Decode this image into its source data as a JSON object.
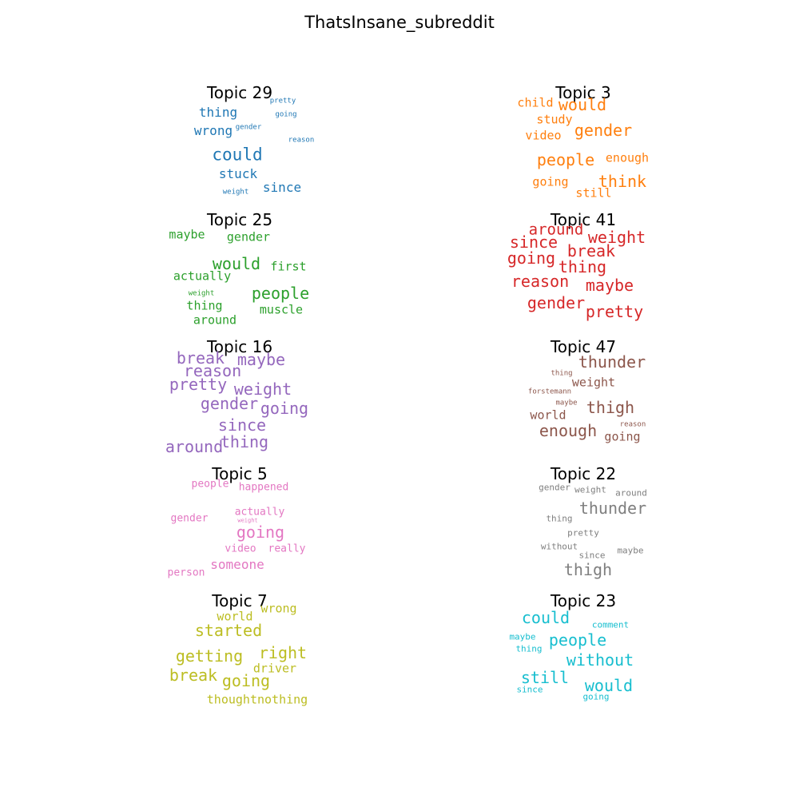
{
  "title": "ThatsInsane_subreddit",
  "topics": [
    {
      "title": "Topic 29",
      "color": "#1f77b4",
      "words": [
        "could",
        "thing",
        "wrong",
        "stuck",
        "since",
        "pretty",
        "going",
        "gender",
        "reason",
        "weight"
      ]
    },
    {
      "title": "Topic 3",
      "color": "#ff7f0e",
      "words": [
        "child",
        "would",
        "study",
        "gender",
        "video",
        "people",
        "enough",
        "think",
        "going",
        "still"
      ]
    },
    {
      "title": "Topic 25",
      "color": "#2ca02c",
      "words": [
        "maybe",
        "gender",
        "would",
        "first",
        "actually",
        "people",
        "weight",
        "thing",
        "muscle",
        "around"
      ]
    },
    {
      "title": "Topic 41",
      "color": "#d62728",
      "words": [
        "around",
        "weight",
        "since",
        "break",
        "going",
        "thing",
        "reason",
        "maybe",
        "gender",
        "pretty"
      ]
    },
    {
      "title": "Topic 16",
      "color": "#9467bd",
      "words": [
        "break",
        "maybe",
        "reason",
        "pretty",
        "weight",
        "gender",
        "going",
        "since",
        "thing",
        "around"
      ]
    },
    {
      "title": "Topic 47",
      "color": "#8c564b",
      "words": [
        "thunder",
        "thing",
        "weight",
        "forstemann",
        "maybe",
        "thigh",
        "world",
        "reason",
        "enough",
        "going"
      ]
    },
    {
      "title": "Topic 5",
      "color": "#e377c2",
      "words": [
        "people",
        "happened",
        "actually",
        "gender",
        "weight",
        "going",
        "video",
        "really",
        "someone",
        "person"
      ]
    },
    {
      "title": "Topic 22",
      "color": "#7f7f7f",
      "words": [
        "gender",
        "weight",
        "around",
        "thunder",
        "thing",
        "pretty",
        "without",
        "since",
        "maybe",
        "thigh"
      ]
    },
    {
      "title": "Topic 7",
      "color": "#bcbd22",
      "words": [
        "wrong",
        "world",
        "started",
        "right",
        "getting",
        "driver",
        "break",
        "going",
        "thoughtnothing"
      ]
    },
    {
      "title": "Topic 23",
      "color": "#17becf",
      "words": [
        "could",
        "comment",
        "maybe",
        "people",
        "thing",
        "without",
        "still",
        "would",
        "since",
        "going"
      ]
    }
  ]
}
